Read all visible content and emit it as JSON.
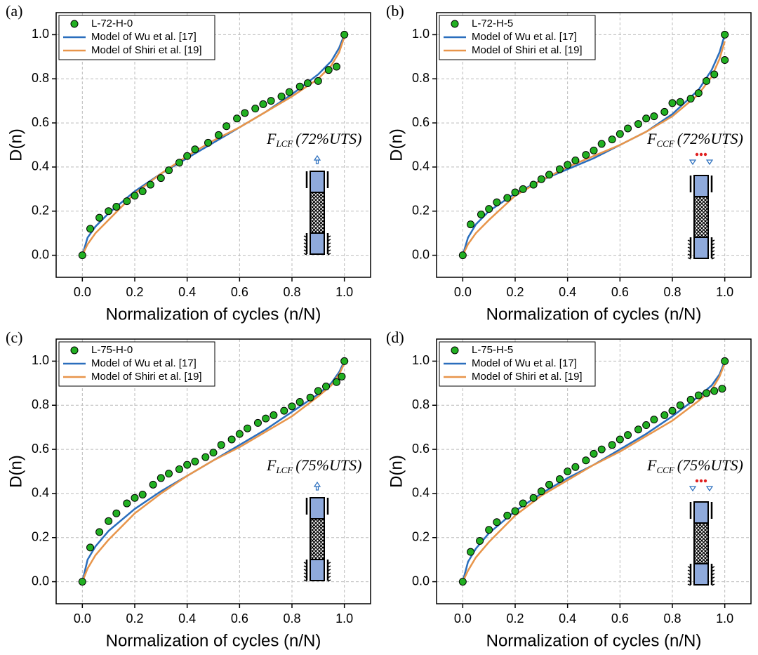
{
  "chart_data": [
    {
      "type": "line",
      "label": "(a)",
      "xlabel": "Normalization of cycles (n/N)",
      "ylabel": "D(n)",
      "xlim": [
        -0.1,
        1.1
      ],
      "ylim": [
        -0.1,
        1.1
      ],
      "xticks": [
        {
          "value": 0,
          "label": "0.0"
        },
        0.2,
        0.4,
        0.6,
        0.8,
        {
          "value": 1,
          "label": "1.0"
        }
      ],
      "yticks": [
        {
          "value": 0,
          "label": "0.0"
        },
        0.2,
        0.4,
        0.6,
        0.8,
        {
          "value": 1,
          "label": "1.0"
        }
      ],
      "grid": true,
      "legend": "upper left",
      "annotation_symbol": "F",
      "annotation_subscript": "LCF",
      "annotation_text": "(72%UTS)",
      "series": [
        {
          "name": "L-72-H-0",
          "type": "scatter",
          "color": "#22b022",
          "x": [
            0,
            0.03,
            0.065,
            0.1,
            0.13,
            0.17,
            0.2,
            0.23,
            0.26,
            0.3,
            0.33,
            0.37,
            0.4,
            0.43,
            0.48,
            0.52,
            0.55,
            0.59,
            0.62,
            0.66,
            0.69,
            0.72,
            0.76,
            0.79,
            0.83,
            0.86,
            0.9,
            0.94,
            0.97,
            1.0
          ],
          "values": [
            0,
            0.12,
            0.17,
            0.2,
            0.22,
            0.245,
            0.27,
            0.29,
            0.32,
            0.35,
            0.385,
            0.42,
            0.45,
            0.48,
            0.51,
            0.545,
            0.585,
            0.62,
            0.645,
            0.665,
            0.685,
            0.7,
            0.72,
            0.74,
            0.765,
            0.78,
            0.79,
            0.84,
            0.855,
            1.0
          ]
        },
        {
          "name": "Model of Wu et al. [17]",
          "type": "line",
          "color": "#2a6ebd",
          "x": [
            0,
            0.02,
            0.05,
            0.1,
            0.2,
            0.3,
            0.4,
            0.5,
            0.6,
            0.7,
            0.8,
            0.9,
            0.95,
            0.98,
            1.0
          ],
          "values": [
            0,
            0.08,
            0.13,
            0.19,
            0.29,
            0.37,
            0.44,
            0.51,
            0.58,
            0.65,
            0.73,
            0.82,
            0.88,
            0.94,
            1.0
          ]
        },
        {
          "name": "Model of Shiri et al. [19]",
          "type": "line",
          "color": "#e8954a",
          "x": [
            0,
            0.02,
            0.05,
            0.1,
            0.2,
            0.3,
            0.4,
            0.5,
            0.6,
            0.7,
            0.8,
            0.9,
            0.95,
            0.98,
            1.0
          ],
          "values": [
            0,
            0.05,
            0.1,
            0.16,
            0.28,
            0.37,
            0.45,
            0.52,
            0.58,
            0.65,
            0.72,
            0.8,
            0.86,
            0.92,
            0.99
          ]
        }
      ]
    },
    {
      "type": "line",
      "label": "(b)",
      "xlabel": "Normalization of cycles (n/N)",
      "ylabel": "D(n)",
      "xlim": [
        -0.1,
        1.1
      ],
      "ylim": [
        -0.1,
        1.1
      ],
      "xticks": [
        {
          "value": 0,
          "label": "0.0"
        },
        0.2,
        0.4,
        0.6,
        0.8,
        {
          "value": 1,
          "label": "1.0"
        }
      ],
      "yticks": [
        {
          "value": 0,
          "label": "0.0"
        },
        0.2,
        0.4,
        0.6,
        0.8,
        {
          "value": 1,
          "label": "1.0"
        }
      ],
      "grid": true,
      "legend": "upper left",
      "annotation_symbol": "F",
      "annotation_subscript": "CCF",
      "annotation_text": "(72%UTS)",
      "series": [
        {
          "name": "L-72-H-5",
          "type": "scatter",
          "color": "#22b022",
          "x": [
            0,
            0.03,
            0.07,
            0.1,
            0.13,
            0.17,
            0.2,
            0.23,
            0.27,
            0.3,
            0.33,
            0.37,
            0.4,
            0.43,
            0.47,
            0.5,
            0.53,
            0.57,
            0.6,
            0.63,
            0.67,
            0.7,
            0.73,
            0.77,
            0.8,
            0.83,
            0.87,
            0.9,
            0.93,
            0.96,
            1.0,
            1.0
          ],
          "values": [
            0,
            0.14,
            0.185,
            0.21,
            0.24,
            0.26,
            0.285,
            0.3,
            0.32,
            0.345,
            0.365,
            0.39,
            0.41,
            0.43,
            0.455,
            0.475,
            0.505,
            0.525,
            0.55,
            0.575,
            0.595,
            0.62,
            0.63,
            0.65,
            0.69,
            0.695,
            0.71,
            0.735,
            0.79,
            0.82,
            0.885,
            1.0
          ]
        },
        {
          "name": "Model of Wu et al. [17]",
          "type": "line",
          "color": "#2a6ebd",
          "x": [
            0,
            0.02,
            0.05,
            0.1,
            0.2,
            0.3,
            0.4,
            0.5,
            0.6,
            0.7,
            0.8,
            0.9,
            0.95,
            0.98,
            1.0
          ],
          "values": [
            0,
            0.08,
            0.14,
            0.2,
            0.28,
            0.34,
            0.39,
            0.44,
            0.5,
            0.56,
            0.64,
            0.75,
            0.84,
            0.92,
            1.0
          ]
        },
        {
          "name": "Model of Shiri et al. [19]",
          "type": "line",
          "color": "#e8954a",
          "x": [
            0,
            0.02,
            0.05,
            0.1,
            0.2,
            0.3,
            0.4,
            0.5,
            0.6,
            0.7,
            0.8,
            0.9,
            0.95,
            0.98,
            1.0
          ],
          "values": [
            0,
            0.05,
            0.1,
            0.16,
            0.27,
            0.34,
            0.4,
            0.45,
            0.5,
            0.56,
            0.63,
            0.73,
            0.81,
            0.89,
            0.97
          ]
        }
      ]
    },
    {
      "type": "line",
      "label": "(c)",
      "xlabel": "Normalization of cycles (n/N)",
      "ylabel": "D(n)",
      "xlim": [
        -0.1,
        1.1
      ],
      "ylim": [
        -0.1,
        1.1
      ],
      "xticks": [
        {
          "value": 0,
          "label": "0.0"
        },
        0.2,
        0.4,
        0.6,
        0.8,
        {
          "value": 1,
          "label": "1.0"
        }
      ],
      "yticks": [
        {
          "value": 0,
          "label": "0.0"
        },
        0.2,
        0.4,
        0.6,
        0.8,
        {
          "value": 1,
          "label": "1.0"
        }
      ],
      "grid": true,
      "legend": "upper left",
      "annotation_symbol": "F",
      "annotation_subscript": "LCF",
      "annotation_text": "(75%UTS)",
      "series": [
        {
          "name": "L-75-H-0",
          "type": "scatter",
          "color": "#22b022",
          "x": [
            0,
            0.03,
            0.065,
            0.1,
            0.13,
            0.17,
            0.2,
            0.23,
            0.27,
            0.3,
            0.33,
            0.37,
            0.4,
            0.43,
            0.47,
            0.5,
            0.53,
            0.57,
            0.6,
            0.63,
            0.67,
            0.7,
            0.73,
            0.77,
            0.8,
            0.83,
            0.87,
            0.9,
            0.93,
            0.97,
            0.99,
            1.0
          ],
          "values": [
            0,
            0.155,
            0.225,
            0.275,
            0.31,
            0.355,
            0.38,
            0.395,
            0.44,
            0.47,
            0.49,
            0.51,
            0.53,
            0.545,
            0.565,
            0.585,
            0.62,
            0.645,
            0.67,
            0.695,
            0.72,
            0.74,
            0.755,
            0.775,
            0.795,
            0.815,
            0.835,
            0.865,
            0.885,
            0.905,
            0.93,
            1.0
          ]
        },
        {
          "name": "Model of Wu et al. [17]",
          "type": "line",
          "color": "#2a6ebd",
          "x": [
            0,
            0.02,
            0.05,
            0.1,
            0.2,
            0.3,
            0.4,
            0.5,
            0.6,
            0.7,
            0.8,
            0.9,
            0.95,
            0.98,
            1.0
          ],
          "values": [
            0,
            0.1,
            0.16,
            0.23,
            0.33,
            0.41,
            0.48,
            0.55,
            0.62,
            0.69,
            0.77,
            0.85,
            0.9,
            0.95,
            1.0
          ]
        },
        {
          "name": "Model of Shiri et al. [19]",
          "type": "line",
          "color": "#e8954a",
          "x": [
            0,
            0.02,
            0.05,
            0.1,
            0.2,
            0.3,
            0.4,
            0.5,
            0.6,
            0.7,
            0.8,
            0.9,
            0.95,
            0.98,
            1.0
          ],
          "values": [
            0,
            0.06,
            0.12,
            0.19,
            0.31,
            0.4,
            0.48,
            0.55,
            0.61,
            0.68,
            0.75,
            0.84,
            0.89,
            0.94,
            0.99
          ]
        }
      ]
    },
    {
      "type": "line",
      "label": "(d)",
      "xlabel": "Normalization of cycles (n/N)",
      "ylabel": "D(n)",
      "xlim": [
        -0.1,
        1.1
      ],
      "ylim": [
        -0.1,
        1.1
      ],
      "xticks": [
        {
          "value": 0,
          "label": "0.0"
        },
        0.2,
        0.4,
        0.6,
        0.8,
        {
          "value": 1,
          "label": "1.0"
        }
      ],
      "yticks": [
        {
          "value": 0,
          "label": "0.0"
        },
        0.2,
        0.4,
        0.6,
        0.8,
        {
          "value": 1,
          "label": "1.0"
        }
      ],
      "grid": true,
      "legend": "upper left",
      "annotation_symbol": "F",
      "annotation_subscript": "CCF",
      "annotation_text": "(75%UTS)",
      "series": [
        {
          "name": "L-75-H-5",
          "type": "scatter",
          "color": "#22b022",
          "x": [
            0,
            0.03,
            0.065,
            0.1,
            0.13,
            0.17,
            0.2,
            0.23,
            0.27,
            0.3,
            0.33,
            0.37,
            0.4,
            0.43,
            0.47,
            0.5,
            0.53,
            0.57,
            0.6,
            0.63,
            0.67,
            0.7,
            0.73,
            0.77,
            0.8,
            0.83,
            0.87,
            0.9,
            0.93,
            0.96,
            0.99,
            1.0
          ],
          "values": [
            0,
            0.135,
            0.185,
            0.235,
            0.27,
            0.3,
            0.32,
            0.355,
            0.38,
            0.41,
            0.44,
            0.465,
            0.5,
            0.52,
            0.55,
            0.58,
            0.6,
            0.62,
            0.645,
            0.665,
            0.69,
            0.71,
            0.735,
            0.755,
            0.775,
            0.8,
            0.825,
            0.845,
            0.855,
            0.865,
            0.875,
            1.0
          ]
        },
        {
          "name": "Model of Wu et al. [17]",
          "type": "line",
          "color": "#2a6ebd",
          "x": [
            0,
            0.02,
            0.05,
            0.1,
            0.2,
            0.3,
            0.4,
            0.5,
            0.6,
            0.7,
            0.8,
            0.9,
            0.95,
            0.98,
            1.0
          ],
          "values": [
            0,
            0.09,
            0.15,
            0.22,
            0.32,
            0.4,
            0.47,
            0.53,
            0.6,
            0.67,
            0.75,
            0.84,
            0.89,
            0.94,
            1.0
          ]
        },
        {
          "name": "Model of Shiri et al. [19]",
          "type": "line",
          "color": "#e8954a",
          "x": [
            0,
            0.02,
            0.05,
            0.1,
            0.2,
            0.3,
            0.4,
            0.5,
            0.6,
            0.7,
            0.8,
            0.9,
            0.95,
            0.98,
            1.0
          ],
          "values": [
            0,
            0.05,
            0.11,
            0.18,
            0.3,
            0.39,
            0.46,
            0.53,
            0.59,
            0.66,
            0.73,
            0.82,
            0.87,
            0.93,
            0.99
          ]
        }
      ]
    }
  ]
}
